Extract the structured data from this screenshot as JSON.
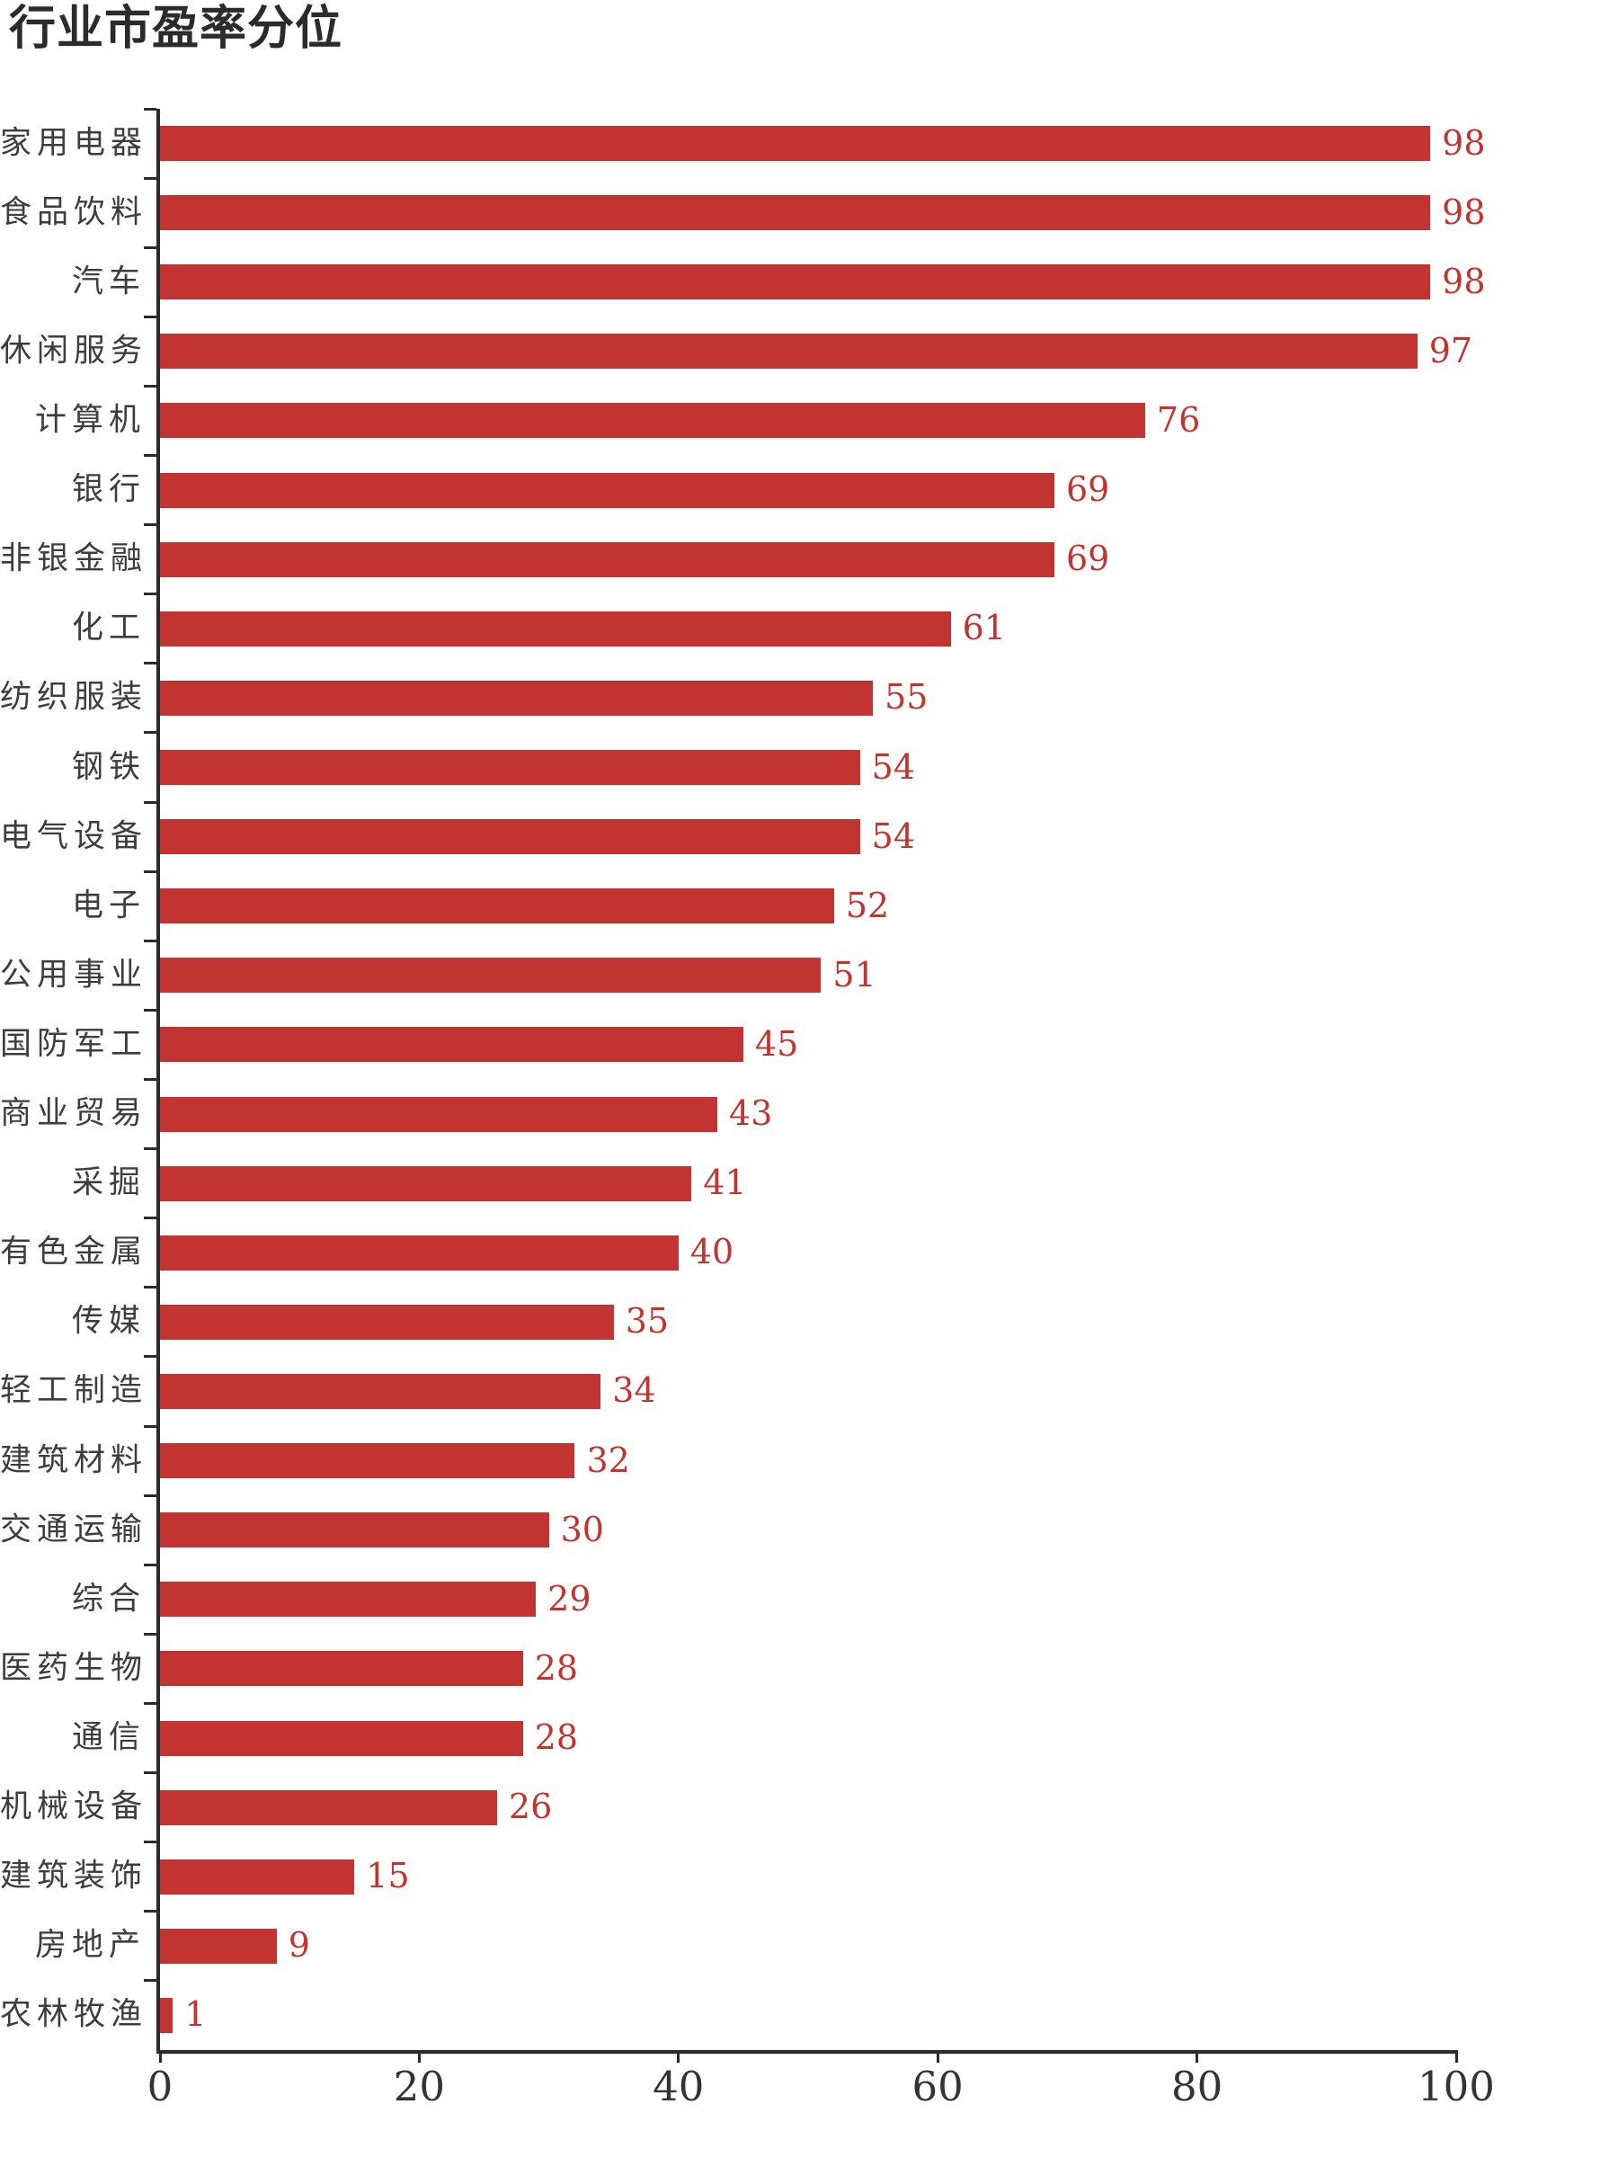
{
  "chart_data": {
    "type": "bar",
    "orientation": "horizontal",
    "title": "行业市盈率分位",
    "categories": [
      "家用电器",
      "食品饮料",
      "汽车",
      "休闲服务",
      "计算机",
      "银行",
      "非银金融",
      "化工",
      "纺织服装",
      "钢铁",
      "电气设备",
      "电子",
      "公用事业",
      "国防军工",
      "商业贸易",
      "采掘",
      "有色金属",
      "传媒",
      "轻工制造",
      "建筑材料",
      "交通运输",
      "综合",
      "医药生物",
      "通信",
      "机械设备",
      "建筑装饰",
      "房地产",
      "农林牧渔"
    ],
    "values": [
      98,
      98,
      98,
      97,
      76,
      69,
      69,
      61,
      55,
      54,
      54,
      52,
      51,
      45,
      43,
      41,
      40,
      35,
      34,
      32,
      30,
      29,
      28,
      28,
      26,
      15,
      9,
      1
    ],
    "xlabel": "",
    "ylabel": "",
    "xlim": [
      0,
      100
    ],
    "x_ticks": [
      0,
      20,
      40,
      60,
      80,
      100
    ],
    "grid": false,
    "legend": "none",
    "value_labels_shown": true,
    "colors": {
      "bar": "#c23431",
      "value_label": "#c23431",
      "axis": "#2b2b2b",
      "category_label": "#3d3d3d",
      "tick_label": "#333333",
      "title": "#2b2b2b"
    }
  }
}
